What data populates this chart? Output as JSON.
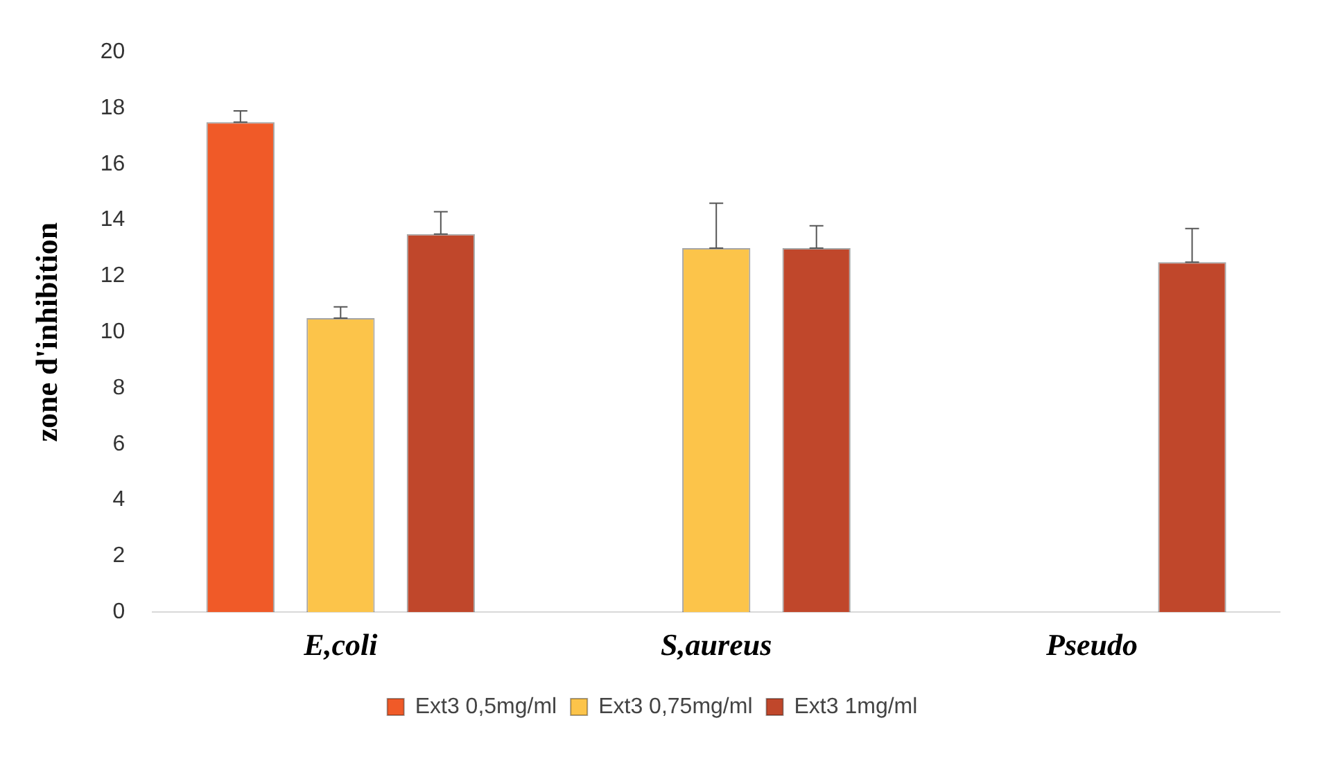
{
  "chart_data": {
    "type": "bar",
    "ylabel": "zone d'inhibition",
    "categories": [
      "E,coli",
      "S,aureus",
      "Pseudo"
    ],
    "series": [
      {
        "name": "Ext3 0,5mg/ml",
        "color": "#f05a28",
        "values": [
          17.5,
          0,
          0
        ],
        "errors": [
          [
            17.5,
            17.9
          ],
          null,
          null
        ]
      },
      {
        "name": "Ext3 0,75mg/ml",
        "color": "#fcc44a",
        "values": [
          10.5,
          13,
          0
        ],
        "errors": [
          [
            10.5,
            10.9
          ],
          [
            13,
            14.6
          ],
          null
        ]
      },
      {
        "name": "Ext3 1mg/ml",
        "color": "#c0472b",
        "values": [
          13.5,
          13,
          12.5
        ],
        "errors": [
          [
            13.5,
            14.3
          ],
          [
            13,
            13.8
          ],
          [
            12.5,
            13.7
          ]
        ]
      }
    ],
    "ylim": [
      0,
      20
    ],
    "yticks": [
      0,
      2,
      4,
      6,
      8,
      10,
      12,
      14,
      16,
      18,
      20
    ],
    "grid": false,
    "legend": "bottom"
  }
}
